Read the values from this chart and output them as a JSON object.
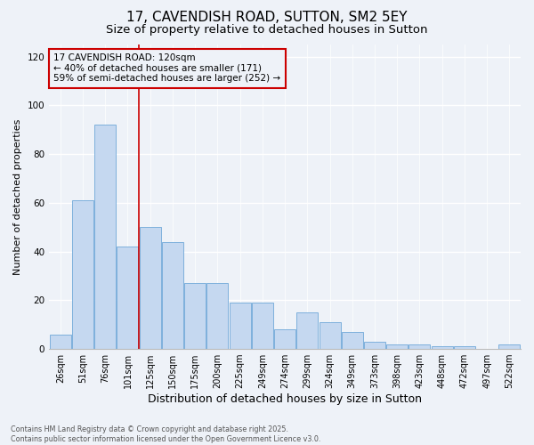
{
  "title_line1": "17, CAVENDISH ROAD, SUTTON, SM2 5EY",
  "title_line2": "Size of property relative to detached houses in Sutton",
  "xlabel": "Distribution of detached houses by size in Sutton",
  "ylabel": "Number of detached properties",
  "categories": [
    "26sqm",
    "51sqm",
    "76sqm",
    "101sqm",
    "125sqm",
    "150sqm",
    "175sqm",
    "200sqm",
    "225sqm",
    "249sqm",
    "274sqm",
    "299sqm",
    "324sqm",
    "349sqm",
    "373sqm",
    "398sqm",
    "423sqm",
    "448sqm",
    "472sqm",
    "497sqm",
    "522sqm"
  ],
  "values": [
    6,
    61,
    92,
    42,
    50,
    44,
    27,
    27,
    19,
    19,
    8,
    15,
    11,
    7,
    3,
    2,
    2,
    1,
    1,
    0,
    2
  ],
  "bar_color": "#c5d8f0",
  "bar_edge_color": "#6fa8d8",
  "vline_index": 3.5,
  "vline_color": "#cc0000",
  "ylim": [
    0,
    125
  ],
  "yticks": [
    0,
    20,
    40,
    60,
    80,
    100,
    120
  ],
  "annotation_title": "17 CAVENDISH ROAD: 120sqm",
  "annotation_line2": "← 40% of detached houses are smaller (171)",
  "annotation_line3": "59% of semi-detached houses are larger (252) →",
  "annotation_box_color": "#cc0000",
  "background_color": "#eef2f8",
  "grid_color": "#ffffff",
  "footnote": "Contains HM Land Registry data © Crown copyright and database right 2025.\nContains public sector information licensed under the Open Government Licence v3.0.",
  "title_fontsize": 11,
  "subtitle_fontsize": 9.5,
  "xlabel_fontsize": 9,
  "ylabel_fontsize": 8,
  "tick_fontsize": 7,
  "annot_fontsize": 7.5
}
